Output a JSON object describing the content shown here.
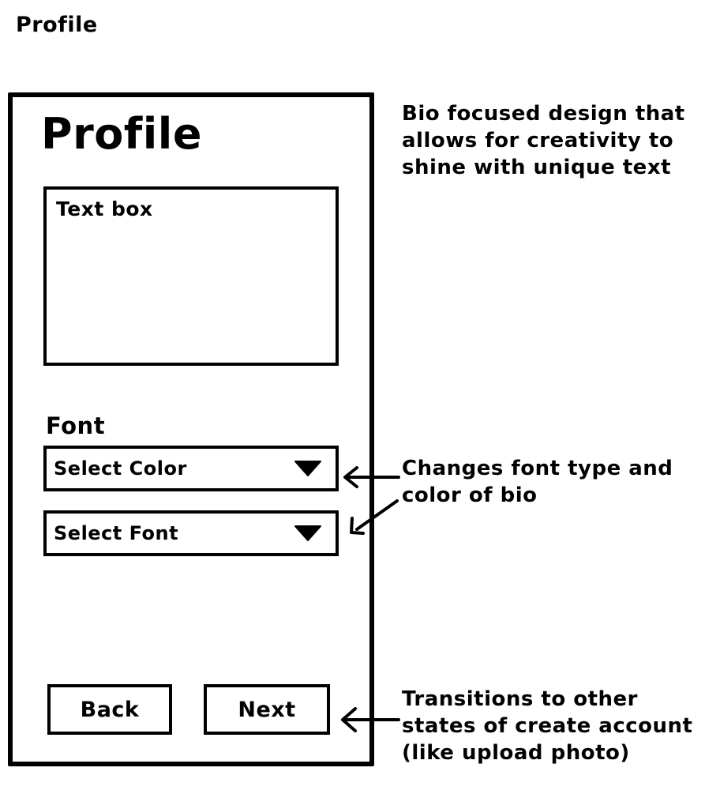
{
  "page": {
    "title": "Profile"
  },
  "screen": {
    "heading": "Profile",
    "textbox_label": "Text box",
    "font_label": "Font",
    "select_color": "Select Color",
    "select_font": "Select Font",
    "back_label": "Back",
    "next_label": "Next",
    "dropdown_icon": "triangle-down-icon"
  },
  "annotations": {
    "bio_note": "Bio focused design that allows for creativity to shine with unique text",
    "font_note": "Changes font type and color of bio",
    "transitions_note": "Transitions to other states of create account (like upload photo)"
  },
  "colors": {
    "ink": "#000000",
    "paper": "#ffffff"
  }
}
